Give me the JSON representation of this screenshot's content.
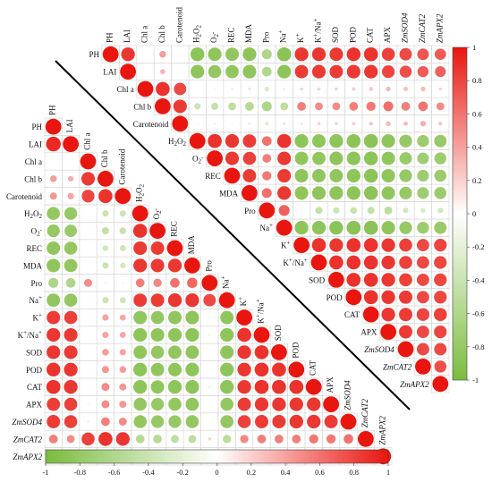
{
  "chart_data": {
    "type": "heatmap",
    "subtype": "correlation-circle-matrix",
    "variables": [
      "PH",
      "LAI",
      "Chl a",
      "Chl b",
      "Carotenoid",
      "H2O2",
      "O2-",
      "REC",
      "MDA",
      "Pro",
      "Na+",
      "K+",
      "K+/Na+",
      "SOD",
      "POD",
      "CAT",
      "APX",
      "ZmSOD4",
      "ZmCAT2",
      "ZmAPX2"
    ],
    "variable_labels": [
      {
        "base": "PH"
      },
      {
        "base": "LAI"
      },
      {
        "base": "Chl a"
      },
      {
        "base": "Chl b"
      },
      {
        "base": "Carotenoid"
      },
      {
        "base": "H",
        "sub": "2",
        "base2": "O",
        "sub2": "2"
      },
      {
        "base": "O",
        "sub": "2",
        "sup": "-"
      },
      {
        "base": "REC"
      },
      {
        "base": "MDA"
      },
      {
        "base": "Pro"
      },
      {
        "base": "Na",
        "sup": "+"
      },
      {
        "base": "K",
        "sup": "+"
      },
      {
        "base": "K",
        "sup": "+",
        "base2": "/Na",
        "sup2": "+"
      },
      {
        "base": "SOD"
      },
      {
        "base": "POD"
      },
      {
        "base": "CAT"
      },
      {
        "base": "APX"
      },
      {
        "base": "ZmSOD4",
        "italic": true
      },
      {
        "base": "ZmCAT2",
        "italic": true
      },
      {
        "base": "ZmAPX2",
        "italic": true
      }
    ],
    "upper_matrix": [
      [
        1,
        0.86,
        0.05,
        0.42,
        0.1,
        -0.87,
        -0.85,
        -0.84,
        -0.86,
        -0.62,
        -0.88,
        0.86,
        0.86,
        0.85,
        0.87,
        0.88,
        0.82,
        0.78,
        0.73,
        0.71
      ],
      [
        0.86,
        1,
        -0.05,
        0.32,
        0.05,
        -0.85,
        -0.82,
        -0.83,
        -0.85,
        -0.6,
        -0.86,
        0.84,
        0.85,
        0.84,
        0.85,
        0.86,
        0.8,
        0.76,
        0.7,
        0.68
      ],
      [
        0.05,
        -0.05,
        1,
        0.88,
        0.78,
        -0.08,
        -0.1,
        -0.15,
        -0.2,
        -0.3,
        -0.15,
        0.2,
        0.2,
        0.2,
        0.22,
        0.25,
        0.3,
        0.28,
        0.3,
        0.2
      ],
      [
        0.42,
        0.32,
        0.88,
        1,
        0.85,
        -0.4,
        -0.45,
        -0.5,
        -0.55,
        -0.62,
        -0.5,
        0.55,
        0.5,
        0.5,
        0.55,
        0.58,
        0.62,
        0.55,
        0.6,
        0.5
      ],
      [
        0.1,
        0.05,
        0.78,
        0.85,
        1,
        -0.1,
        -0.15,
        -0.12,
        -0.18,
        -0.25,
        -0.2,
        0.15,
        0.2,
        0.2,
        0.22,
        0.25,
        0.3,
        0.28,
        0.35,
        0.25
      ],
      [
        -0.87,
        -0.85,
        -0.08,
        -0.4,
        -0.1,
        1,
        0.88,
        0.86,
        0.84,
        0.6,
        0.88,
        -0.86,
        -0.85,
        -0.86,
        -0.87,
        -0.88,
        -0.85,
        -0.8,
        -0.75,
        -0.78
      ],
      [
        -0.85,
        -0.82,
        -0.1,
        -0.45,
        -0.15,
        0.88,
        1,
        0.85,
        0.82,
        0.55,
        0.85,
        -0.84,
        -0.83,
        -0.85,
        -0.86,
        -0.87,
        -0.84,
        -0.78,
        -0.73,
        -0.75
      ],
      [
        -0.84,
        -0.83,
        -0.15,
        -0.5,
        -0.12,
        0.86,
        0.85,
        1,
        0.84,
        0.58,
        0.85,
        -0.85,
        -0.84,
        -0.84,
        -0.86,
        -0.87,
        -0.85,
        -0.8,
        -0.74,
        -0.76
      ],
      [
        -0.86,
        -0.85,
        -0.2,
        -0.55,
        -0.18,
        0.84,
        0.82,
        0.84,
        1,
        0.62,
        0.86,
        -0.85,
        -0.85,
        -0.86,
        -0.86,
        -0.87,
        -0.84,
        -0.8,
        -0.74,
        -0.76
      ],
      [
        -0.62,
        -0.6,
        -0.3,
        -0.62,
        -0.25,
        0.6,
        0.55,
        0.58,
        0.62,
        1,
        0.68,
        -0.12,
        -0.45,
        -0.4,
        -0.42,
        -0.45,
        -0.5,
        -0.35,
        -0.3,
        -0.35
      ],
      [
        -0.88,
        -0.86,
        -0.15,
        -0.5,
        -0.2,
        0.88,
        0.85,
        0.85,
        0.86,
        0.68,
        1,
        -0.86,
        -0.86,
        -0.87,
        -0.88,
        -0.88,
        -0.85,
        -0.8,
        -0.75,
        -0.78
      ],
      [
        0.86,
        0.84,
        0.2,
        0.55,
        0.15,
        -0.86,
        -0.84,
        -0.85,
        -0.85,
        -0.12,
        -0.86,
        1,
        0.88,
        0.86,
        0.88,
        0.88,
        0.86,
        0.82,
        0.78,
        0.8
      ],
      [
        0.86,
        0.85,
        0.2,
        0.5,
        0.2,
        -0.85,
        -0.83,
        -0.84,
        -0.85,
        -0.45,
        -0.86,
        0.88,
        1,
        0.88,
        0.88,
        0.88,
        0.86,
        0.82,
        0.78,
        0.8
      ],
      [
        0.85,
        0.84,
        0.2,
        0.5,
        0.2,
        -0.86,
        -0.85,
        -0.84,
        -0.86,
        -0.4,
        -0.87,
        0.86,
        0.88,
        1,
        0.88,
        0.88,
        0.86,
        0.82,
        0.78,
        0.8
      ],
      [
        0.87,
        0.85,
        0.22,
        0.55,
        0.22,
        -0.87,
        -0.86,
        -0.86,
        -0.86,
        -0.42,
        -0.88,
        0.88,
        0.88,
        0.88,
        1,
        0.88,
        0.86,
        0.84,
        0.78,
        0.8
      ],
      [
        0.88,
        0.86,
        0.25,
        0.58,
        0.25,
        -0.88,
        -0.87,
        -0.87,
        -0.87,
        -0.45,
        -0.88,
        0.88,
        0.88,
        0.88,
        0.88,
        1,
        0.86,
        0.84,
        0.8,
        0.82
      ],
      [
        0.82,
        0.8,
        0.3,
        0.62,
        0.3,
        -0.85,
        -0.84,
        -0.85,
        -0.84,
        -0.5,
        -0.85,
        0.86,
        0.86,
        0.86,
        0.86,
        0.86,
        1,
        0.84,
        0.78,
        0.8
      ],
      [
        0.78,
        0.76,
        0.28,
        0.55,
        0.28,
        -0.8,
        -0.78,
        -0.8,
        -0.8,
        -0.35,
        -0.8,
        0.82,
        0.82,
        0.82,
        0.84,
        0.84,
        0.84,
        1,
        0.78,
        0.78
      ],
      [
        0.73,
        0.7,
        0.3,
        0.6,
        0.35,
        -0.75,
        -0.73,
        -0.74,
        -0.74,
        -0.3,
        -0.75,
        0.78,
        0.78,
        0.78,
        0.78,
        0.8,
        0.78,
        0.78,
        1,
        0.76
      ],
      [
        0.71,
        0.68,
        0.2,
        0.5,
        0.25,
        -0.78,
        -0.75,
        -0.76,
        -0.76,
        -0.35,
        -0.78,
        0.8,
        0.8,
        0.8,
        0.8,
        0.82,
        0.8,
        0.78,
        0.76,
        1
      ]
    ],
    "lower_matrix": [
      [
        1,
        0.92,
        0.05,
        0.42,
        0.45,
        -0.82,
        -0.8,
        -0.84,
        -0.85,
        -0.62,
        -0.84,
        0.84,
        0.86,
        0.86,
        0.87,
        0.88,
        0.83,
        0.84,
        0.55,
        0.82
      ],
      [
        0.92,
        1,
        -0.05,
        0.35,
        0.4,
        -0.8,
        -0.78,
        -0.82,
        -0.83,
        -0.6,
        -0.82,
        0.82,
        0.85,
        0.85,
        0.86,
        0.86,
        0.82,
        0.82,
        0.5,
        0.8
      ],
      [
        0.05,
        -0.05,
        1,
        0.85,
        0.8,
        -0.06,
        -0.08,
        -0.05,
        -0.05,
        0.5,
        -0.1,
        0.05,
        -0.05,
        0.05,
        0.05,
        0.08,
        0.1,
        0.12,
        0.82,
        0.1
      ],
      [
        0.42,
        0.35,
        0.85,
        1,
        0.88,
        -0.4,
        -0.45,
        -0.35,
        -0.4,
        0.1,
        -0.4,
        0.4,
        0.4,
        0.42,
        0.45,
        0.5,
        0.5,
        0.55,
        0.88,
        0.5
      ],
      [
        0.45,
        0.4,
        0.8,
        0.88,
        1,
        -0.4,
        -0.42,
        -0.38,
        -0.35,
        0.1,
        -0.38,
        0.38,
        0.38,
        0.4,
        0.42,
        0.45,
        0.45,
        0.5,
        0.86,
        0.45
      ],
      [
        -0.82,
        -0.8,
        -0.06,
        -0.4,
        -0.4,
        1,
        0.88,
        0.85,
        0.86,
        0.55,
        0.84,
        -0.84,
        -0.86,
        -0.84,
        -0.86,
        -0.86,
        -0.82,
        -0.82,
        -0.55,
        -0.8
      ],
      [
        -0.8,
        -0.78,
        -0.08,
        -0.45,
        -0.42,
        0.88,
        1,
        0.84,
        0.85,
        0.52,
        0.84,
        -0.82,
        -0.85,
        -0.82,
        -0.84,
        -0.84,
        -0.8,
        -0.8,
        -0.55,
        -0.78
      ],
      [
        -0.84,
        -0.82,
        -0.05,
        -0.35,
        -0.38,
        0.85,
        0.84,
        1,
        0.86,
        0.6,
        0.86,
        -0.84,
        -0.86,
        -0.84,
        -0.85,
        -0.86,
        -0.82,
        -0.8,
        -0.5,
        -0.78
      ],
      [
        -0.85,
        -0.83,
        -0.05,
        -0.4,
        -0.35,
        0.86,
        0.85,
        0.86,
        1,
        0.65,
        0.86,
        -0.85,
        -0.86,
        -0.84,
        -0.86,
        -0.86,
        -0.83,
        -0.82,
        -0.5,
        -0.8
      ],
      [
        -0.62,
        -0.6,
        0.5,
        0.1,
        0.1,
        0.55,
        0.52,
        0.6,
        0.65,
        1,
        0.78,
        -0.12,
        -0.15,
        -0.1,
        -0.12,
        -0.15,
        -0.1,
        -0.1,
        0.2,
        -0.1
      ],
      [
        -0.84,
        -0.82,
        -0.1,
        -0.4,
        -0.38,
        0.84,
        0.84,
        0.86,
        0.86,
        0.78,
        1,
        -0.84,
        -0.86,
        -0.85,
        -0.86,
        -0.86,
        -0.82,
        -0.82,
        -0.52,
        -0.8
      ],
      [
        0.84,
        0.82,
        0.05,
        0.4,
        0.38,
        -0.84,
        -0.82,
        -0.84,
        -0.85,
        -0.12,
        -0.84,
        1,
        0.88,
        0.86,
        0.86,
        0.86,
        0.84,
        0.82,
        0.52,
        0.8
      ],
      [
        0.86,
        0.85,
        -0.05,
        0.4,
        0.38,
        -0.86,
        -0.85,
        -0.86,
        -0.86,
        -0.15,
        -0.86,
        0.88,
        1,
        0.88,
        0.88,
        0.88,
        0.86,
        0.84,
        0.55,
        0.82
      ],
      [
        0.86,
        0.85,
        0.05,
        0.42,
        0.4,
        -0.84,
        -0.82,
        -0.84,
        -0.84,
        -0.1,
        -0.85,
        0.86,
        0.88,
        1,
        0.88,
        0.88,
        0.86,
        0.84,
        0.55,
        0.82
      ],
      [
        0.87,
        0.86,
        0.05,
        0.45,
        0.42,
        -0.86,
        -0.84,
        -0.85,
        -0.86,
        -0.12,
        -0.86,
        0.86,
        0.88,
        0.88,
        1,
        0.88,
        0.86,
        0.86,
        0.55,
        0.84
      ],
      [
        0.88,
        0.86,
        0.08,
        0.5,
        0.45,
        -0.86,
        -0.84,
        -0.86,
        -0.86,
        -0.15,
        -0.86,
        0.86,
        0.88,
        0.88,
        0.88,
        1,
        0.86,
        0.86,
        0.58,
        0.84
      ],
      [
        0.83,
        0.82,
        0.1,
        0.5,
        0.45,
        -0.82,
        -0.8,
        -0.82,
        -0.83,
        -0.1,
        -0.82,
        0.84,
        0.86,
        0.86,
        0.86,
        0.86,
        1,
        0.84,
        0.58,
        0.82
      ],
      [
        0.84,
        0.82,
        0.12,
        0.55,
        0.5,
        -0.82,
        -0.8,
        -0.8,
        -0.82,
        -0.1,
        -0.82,
        0.82,
        0.84,
        0.84,
        0.86,
        0.86,
        0.84,
        1,
        0.6,
        0.84
      ],
      [
        0.55,
        0.5,
        0.82,
        0.88,
        0.86,
        -0.55,
        -0.55,
        -0.5,
        -0.5,
        0.2,
        -0.52,
        0.52,
        0.55,
        0.55,
        0.55,
        0.58,
        0.58,
        0.6,
        1,
        0.58
      ],
      [
        0.82,
        0.8,
        0.1,
        0.5,
        0.45,
        -0.8,
        -0.78,
        -0.78,
        -0.8,
        -0.1,
        -0.8,
        0.8,
        0.82,
        0.82,
        0.84,
        0.84,
        0.82,
        0.84,
        0.58,
        1
      ]
    ],
    "colorscale": {
      "min": -1,
      "mid": 0,
      "max": 1,
      "low_color": "#7cbb3f",
      "mid_color": "#ffffff",
      "high_color": "#e8160f"
    },
    "vertical_colorbar_ticks": [
      "1",
      "0.8",
      "0.6",
      "0.4",
      "0.2",
      "0",
      "-0.2",
      "-0.4",
      "-0.6",
      "-0.8",
      "-1"
    ],
    "horizontal_colorbar_ticks": [
      "-1",
      "-0.8",
      "-0.6",
      "-0.4",
      "-0.2",
      "0",
      "0.2",
      "0.4",
      "0.6",
      "0.8",
      "1"
    ],
    "separator_line": "diagonal between triangles"
  }
}
